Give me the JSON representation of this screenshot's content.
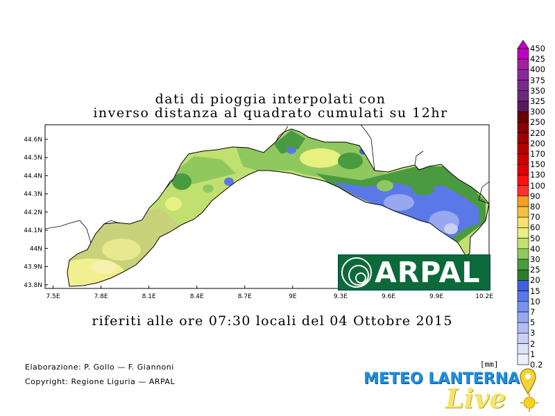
{
  "title_line1": "dati di pioggia interpolati con",
  "title_line2": "inverso distanza al quadrato cumulati su 12hr",
  "subtitle": "riferiti alle ore 07:30 locali del 04 Ottobre 2015",
  "credits": {
    "elaboration": "Elaborazione: P. Gollo — F. Giannoni",
    "copyright": "Copyright: Regione Liguria — ARPAL"
  },
  "unit": "[mm]",
  "logos": {
    "arpal": "ARPAL",
    "meteo_lanterna": "METEO LANTERNA",
    "live": "Live"
  },
  "axes": {
    "x_ticks": [
      "7.5E",
      "7.8E",
      "8.1E",
      "8.4E",
      "8.7E",
      "9E",
      "9.3E",
      "9.6E",
      "9.9E",
      "10.2E"
    ],
    "y_ticks": [
      "44.6N",
      "44.5N",
      "44.4N",
      "44.3N",
      "44.2N",
      "44.1N",
      "44N",
      "43.9N",
      "43.8N"
    ],
    "x_range": [
      7.45,
      10.23
    ],
    "y_range": [
      43.78,
      44.68
    ]
  },
  "colorbar": {
    "labels": [
      "450",
      "425",
      "400",
      "375",
      "350",
      "325",
      "300",
      "250",
      "220",
      "200",
      "170",
      "150",
      "130",
      "100",
      "90",
      "80",
      "70",
      "60",
      "50",
      "40",
      "30",
      "25",
      "20",
      "15",
      "10",
      "7",
      "5",
      "3",
      "2",
      "1",
      "0.2"
    ],
    "colors": [
      "#c000c0",
      "#a020a0",
      "#8a2a9a",
      "#7a2a8a",
      "#6a2a7a",
      "#5a1a5a",
      "#6b0000",
      "#880000",
      "#a00000",
      "#b80000",
      "#d00000",
      "#e00000",
      "#ff1010",
      "#ff3030",
      "#f4a020",
      "#f4c040",
      "#f8e070",
      "#e8f080",
      "#c0e070",
      "#90c860",
      "#4a9a40",
      "#2e7a2e",
      "#4060e0",
      "#5a78e8",
      "#7a90f0",
      "#98a8f0",
      "#b0bcf4",
      "#c8d0f8",
      "#dde2f8",
      "#eef0fa"
    ]
  }
}
